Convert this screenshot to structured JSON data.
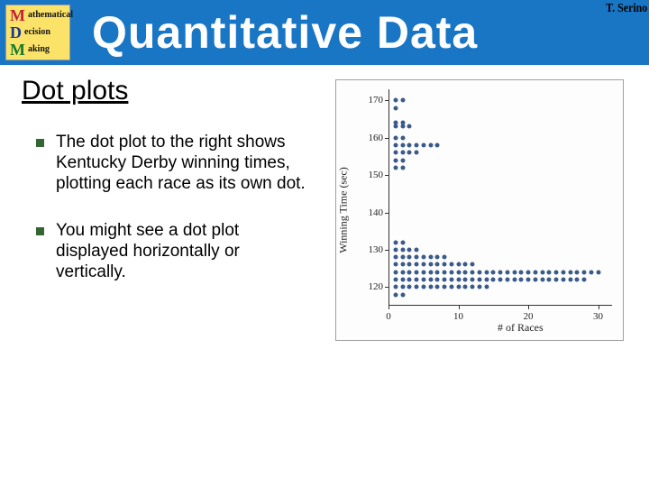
{
  "header": {
    "bg_color": "#1976c4",
    "title": "Quantitative Data",
    "title_color": "#ffffff",
    "logo": {
      "bg_color": "#fbe36a",
      "lines": [
        {
          "letter": "M",
          "letter_color": "#c41e3a",
          "word": "athematical",
          "word_color": "#111"
        },
        {
          "letter": "D",
          "letter_color": "#1a3a8a",
          "word": "ecision",
          "word_color": "#111"
        },
        {
          "letter": "M",
          "letter_color": "#127a2a",
          "word": "aking",
          "word_color": "#111"
        }
      ]
    }
  },
  "author": "T. Serino",
  "section_title": "Dot plots",
  "bullets": [
    "The dot plot to the right shows Kentucky Derby winning times, plotting each race as its own dot.",
    "You might see a dot plot displayed horizontally or vertically."
  ],
  "chart": {
    "type": "dotplot",
    "xlabel": "# of Races",
    "ylabel": "Winning Time (sec)",
    "x_min": 0,
    "x_max": 32,
    "y_min": 115,
    "y_max": 173,
    "x_ticks": [
      0,
      10,
      20,
      30
    ],
    "y_ticks": [
      120,
      130,
      140,
      150,
      160,
      170
    ],
    "dot_color": "#3a5a8a",
    "border_color": "#a0a0a0",
    "bg_color": "#fdfdfd",
    "rows": [
      {
        "y": 170,
        "count": 2
      },
      {
        "y": 168,
        "count": 1
      },
      {
        "y": 164,
        "count": 2
      },
      {
        "y": 163,
        "count": 3
      },
      {
        "y": 160,
        "count": 2
      },
      {
        "y": 158,
        "count": 7
      },
      {
        "y": 156,
        "count": 4
      },
      {
        "y": 154,
        "count": 2
      },
      {
        "y": 152,
        "count": 2
      },
      {
        "y": 132,
        "count": 2
      },
      {
        "y": 130,
        "count": 4
      },
      {
        "y": 128,
        "count": 8
      },
      {
        "y": 126,
        "count": 12
      },
      {
        "y": 124,
        "count": 30
      },
      {
        "y": 122,
        "count": 28
      },
      {
        "y": 120,
        "count": 14
      },
      {
        "y": 118,
        "count": 2
      }
    ]
  }
}
